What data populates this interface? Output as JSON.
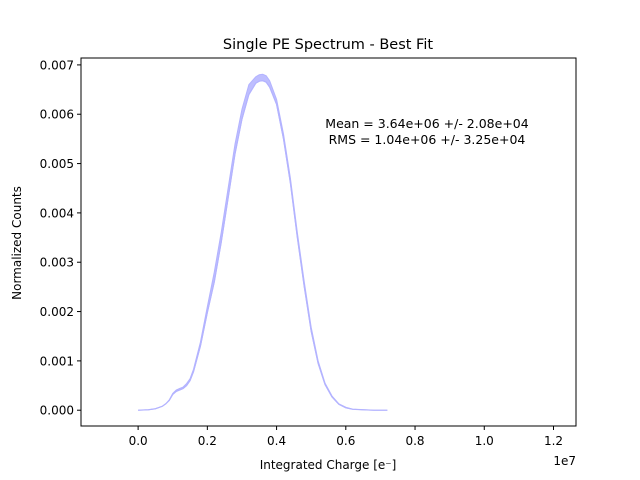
{
  "chart_data": {
    "type": "area",
    "title": "Single PE Spectrum - Best Fit",
    "xlabel": "Integrated Charge [e⁻]",
    "ylabel": "Normalized Counts",
    "x_offset_label": "1e7",
    "xlim": [
      -1.65,
      12.65
    ],
    "ylim": [
      -0.00032,
      0.00714
    ],
    "xticks": [
      0.0,
      2.0,
      4.0,
      6.0,
      8.0,
      10.0,
      12.0
    ],
    "xtick_labels": [
      "0.0",
      "0.2",
      "0.4",
      "0.6",
      "0.8",
      "1.0",
      "1.2"
    ],
    "yticks": [
      0.0,
      0.001,
      0.002,
      0.003,
      0.004,
      0.005,
      0.006,
      0.007
    ],
    "ytick_labels": [
      "0.000",
      "0.001",
      "0.002",
      "0.003",
      "0.004",
      "0.005",
      "0.006",
      "0.007"
    ],
    "series_color": "#b3b3ff",
    "annotations": [
      "Mean = 3.64e+06 +/- 2.08e+04",
      "RMS = 1.04e+06 +/- 3.25e+04"
    ],
    "band": {
      "x": [
        0.0,
        0.3,
        0.5,
        0.7,
        0.8,
        0.9,
        1.0,
        1.1,
        1.2,
        1.3,
        1.4,
        1.5,
        1.6,
        1.8,
        2.0,
        2.2,
        2.4,
        2.6,
        2.8,
        3.0,
        3.2,
        3.4,
        3.5,
        3.6,
        3.7,
        3.8,
        4.0,
        4.2,
        4.4,
        4.6,
        4.8,
        5.0,
        5.2,
        5.4,
        5.6,
        5.8,
        6.0,
        6.2,
        6.5,
        6.8,
        7.0,
        7.2
      ],
      "lower": [
        0.0,
        1e-05,
        3e-05,
        8e-05,
        0.00013,
        0.0002,
        0.00032,
        0.00038,
        0.00041,
        0.00044,
        0.0005,
        0.0006,
        0.00078,
        0.0013,
        0.00198,
        0.0026,
        0.0034,
        0.0043,
        0.0052,
        0.0059,
        0.0064,
        0.00663,
        0.00667,
        0.00668,
        0.00665,
        0.00655,
        0.0062,
        0.0055,
        0.0046,
        0.0035,
        0.0025,
        0.0016,
        0.00095,
        0.00052,
        0.00027,
        0.00012,
        5e-05,
        2e-05,
        1e-05,
        0.0,
        0.0,
        0.0
      ],
      "upper": [
        0.0,
        1e-05,
        3e-05,
        8e-05,
        0.00013,
        0.00021,
        0.00034,
        0.00041,
        0.00044,
        0.00047,
        0.00054,
        0.00064,
        0.00083,
        0.00138,
        0.0021,
        0.0028,
        0.0036,
        0.0045,
        0.0054,
        0.0061,
        0.0066,
        0.00676,
        0.0068,
        0.00681,
        0.00678,
        0.00668,
        0.0063,
        0.0056,
        0.0047,
        0.0036,
        0.0026,
        0.00168,
        0.001,
        0.00055,
        0.00029,
        0.00013,
        6e-05,
        2e-05,
        1e-05,
        0.0,
        0.0,
        0.0
      ]
    }
  }
}
